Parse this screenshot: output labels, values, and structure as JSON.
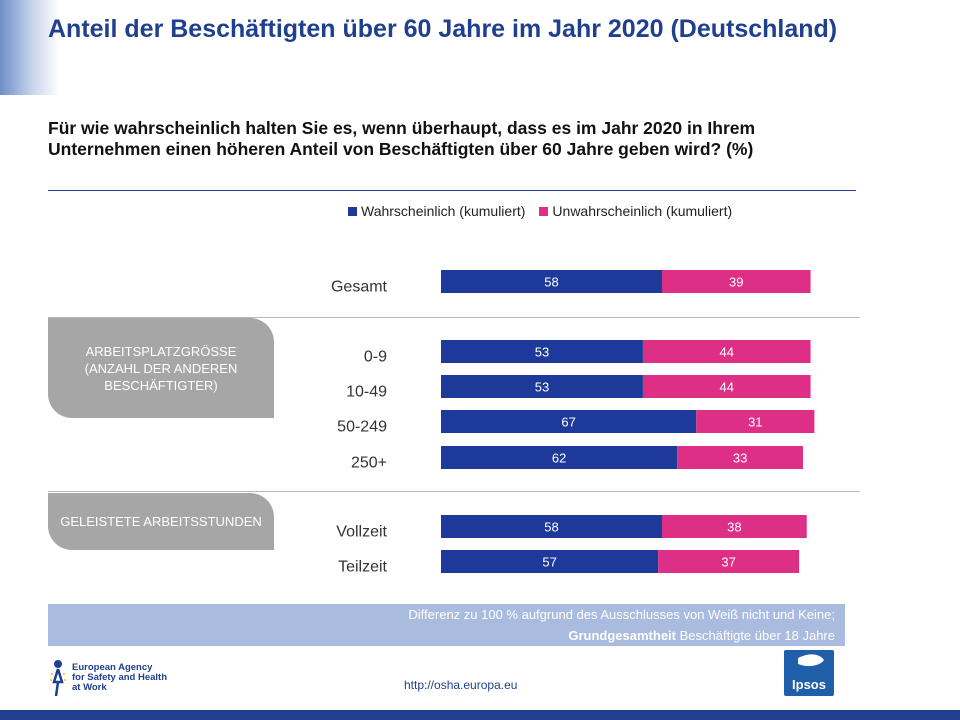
{
  "header": {
    "title": "Anteil der Beschäftigten über 60 Jahre im Jahr 2020 (Deutschland)",
    "question": "Für wie wahrscheinlich halten Sie es, wenn überhaupt, dass es im Jahr 2020 in Ihrem Unternehmen einen höheren Anteil von Beschäftigten über 60 Jahre geben wird?   (%)"
  },
  "groups": {
    "size_label": "ARBEITSPLATZGRÖSSE (ANZAHL DER ANDEREN BESCHÄFTIGTER)",
    "hours_label": "GELEISTETE ARBEITSSTUNDEN"
  },
  "colors": {
    "likely": "#1d3a9a",
    "unlikely": "#dd2f86",
    "group_box": "#a6a6a6",
    "note_box": "#a9bbdf",
    "title": "#1f3f8f"
  },
  "chart_data": {
    "type": "bar",
    "orientation": "horizontal",
    "stacked": true,
    "categories": [
      "Gesamt",
      "0-9",
      "10-49",
      "50-249",
      "250+",
      "Vollzeit",
      "Teilzeit"
    ],
    "series": [
      {
        "name": "Wahrscheinlich (kumuliert)",
        "values": [
          58,
          53,
          53,
          67,
          62,
          58,
          57
        ]
      },
      {
        "name": "Unwahrscheinlich (kumuliert)",
        "values": [
          39,
          44,
          44,
          31,
          33,
          38,
          37
        ]
      }
    ],
    "xlim": [
      0,
      100
    ],
    "legend": "top",
    "grid": false
  },
  "footer": {
    "note_line1": "Differenz zu 100 % aufgrund des Ausschlusses von Weiß nicht und Keine;",
    "note_bold": "Grundgesamtheit",
    "note_rest": " Beschäftigte über 18 Jahre",
    "url": "http://osha.europa.eu",
    "logo_text": "European Agency for Safety and Health at Work",
    "ipsos_text": "Ipsos"
  }
}
